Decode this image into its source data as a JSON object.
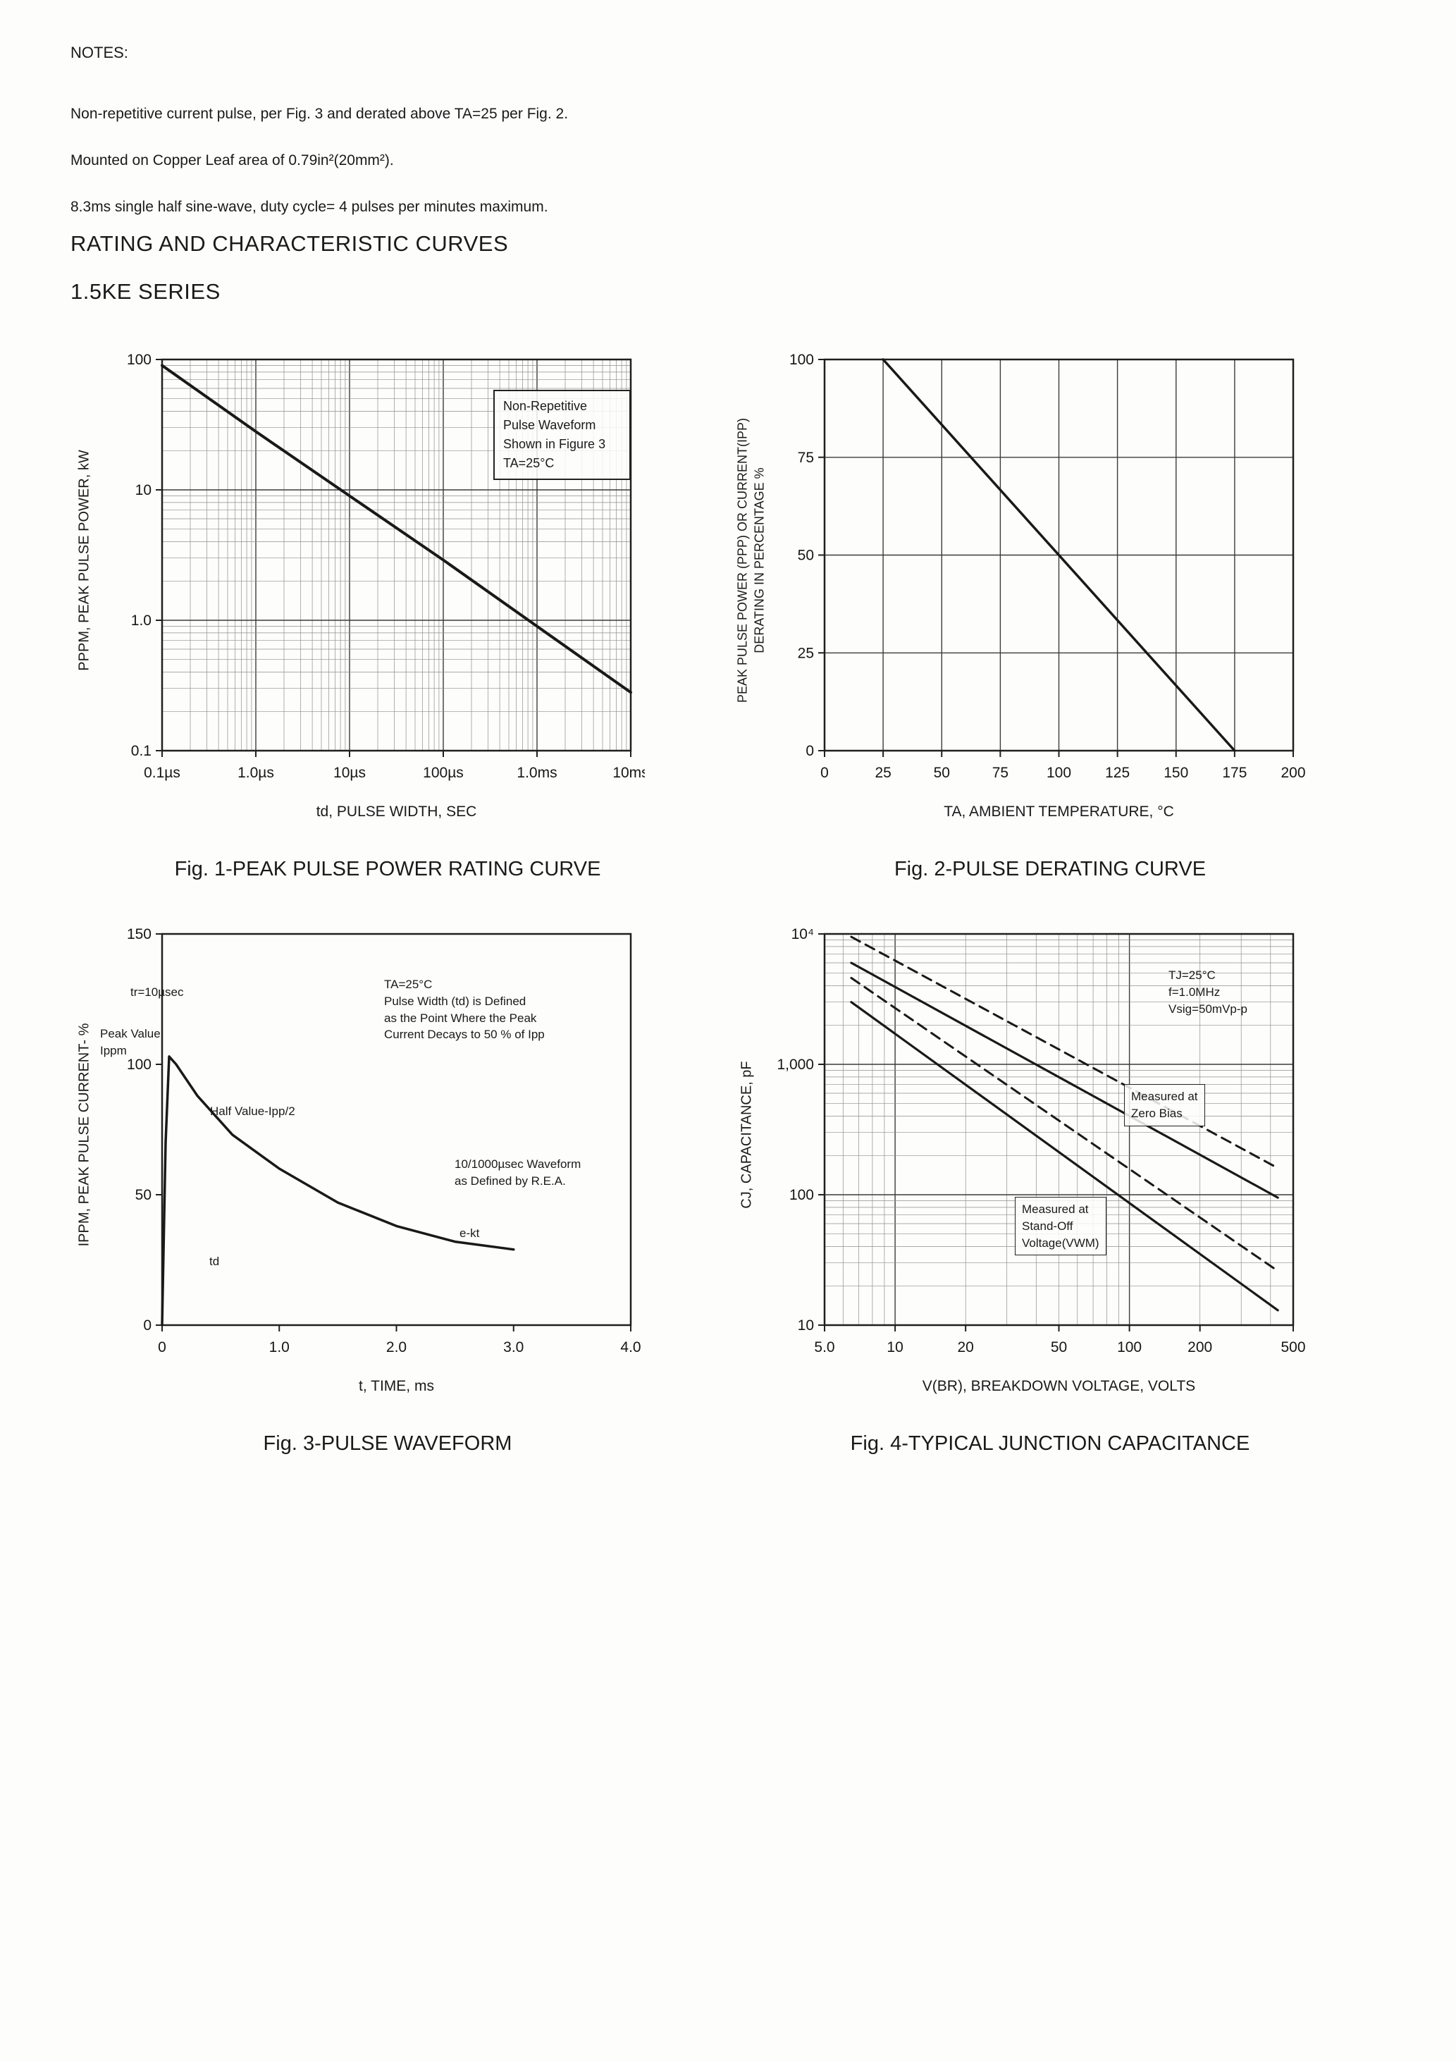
{
  "page": {
    "notes_heading": "NOTES:",
    "notes": [
      "Non-repetitive current pulse, per Fig. 3 and derated above TA=25  per Fig. 2.",
      "Mounted on Copper Leaf area of 0.79in²(20mm²).",
      "8.3ms single half sine-wave, duty cycle= 4 pulses per minutes maximum."
    ],
    "heading1": "RATING AND CHARACTERISTIC CURVES",
    "heading2": "1.5KE SERIES"
  },
  "figures": {
    "fig1": {
      "caption": "Fig. 1-PEAK PULSE POWER RATING CURVE",
      "xlabel": "td, PULSE WIDTH, SEC",
      "ylabel": "PPPM, PEAK PULSE POWER, kW",
      "legend": "Non-Repetitive\nPulse Waveform\nShown in Figure 3\nTA=25°C"
    },
    "fig2": {
      "caption": "Fig. 2-PULSE DERATING CURVE",
      "xlabel": "TA, AMBIENT TEMPERATURE, °C",
      "ylabel": "PEAK PULSE POWER (PPP) OR CURRENT(IPP)\nDERATING IN PERCENTAGE %"
    },
    "fig3": {
      "caption": "Fig. 3-PULSE WAVEFORM",
      "xlabel": "t, TIME, ms",
      "ylabel": "IPPM, PEAK PULSE CURRENT- %",
      "ann_tr": "tr=10µsec",
      "ann_peak": "Peak Value\nIppm",
      "ann_half": "Half Value-Ipp/2",
      "ann_def": "TA=25°C\nPulse Width (td) is Defined\nas the Point Where the Peak\nCurrent Decays to 50 % of Ipp",
      "ann_wave": "10/1000µsec Waveform\nas Defined by R.E.A.",
      "ann_ekt": "e-kt",
      "ann_td": "td"
    },
    "fig4": {
      "caption": "Fig. 4-TYPICAL JUNCTION CAPACITANCE",
      "xlabel": "V(BR), BREAKDOWN VOLTAGE, VOLTS",
      "ylabel": "CJ, CAPACITANCE, pF",
      "ann_cond": "TJ=25°C\nf=1.0MHz\nVsig=50mVp-p",
      "ann_zero": "Measured at\nZero Bias",
      "ann_standoff": "Measured at\nStand-Off\nVoltage(VWM)"
    }
  },
  "chart_data": [
    {
      "type": "line",
      "title": "Fig. 1-PEAK PULSE POWER RATING CURVE",
      "xlabel": "td, PULSE WIDTH, SEC",
      "ylabel": "PPPM, PEAK PULSE POWER, kW",
      "xscale": "log",
      "xmin": 1e-07,
      "xmax": 0.01,
      "yscale": "log",
      "ymin": 0.1,
      "ymax": 100,
      "grid": {
        "x": "log",
        "y": "log"
      },
      "xticks": [
        1e-07,
        1e-06,
        1e-05,
        0.0001,
        0.001,
        0.01
      ],
      "xtick_labels": [
        "0.1µs",
        "1.0µs",
        "10µs",
        "100µs",
        "1.0ms",
        "10ms"
      ],
      "yticks": [
        100,
        10,
        1,
        0.1
      ],
      "ytick_labels": [
        "100",
        "10",
        "1.0",
        "0.1"
      ],
      "series": [
        {
          "name": "peak-pulse-power-kW",
          "dash": false,
          "width": 4,
          "points": [
            [
              1e-07,
              90
            ],
            [
              1e-06,
              28
            ],
            [
              1e-05,
              9
            ],
            [
              0.0001,
              2.9
            ],
            [
              0.001,
              0.9
            ],
            [
              0.01,
              0.28
            ]
          ]
        }
      ],
      "annotation": "Non-Repetitive Pulse Waveform Shown in Figure 3, TA=25°C"
    },
    {
      "type": "line",
      "title": "Fig. 2-PULSE DERATING CURVE",
      "xlabel": "TA, AMBIENT TEMPERATURE, °C",
      "ylabel": "PEAK PULSE POWER (PPP) OR CURRENT(IPP) DERATING IN PERCENTAGE %",
      "xscale": "linear",
      "xmin": 0,
      "xmax": 200,
      "yscale": "linear",
      "ymin": 0,
      "ymax": 100,
      "grid": {
        "x": 25,
        "y": 25
      },
      "xticks": [
        0,
        25,
        50,
        75,
        100,
        125,
        150,
        175,
        200
      ],
      "xtick_labels": [
        "0",
        "25",
        "50",
        "75",
        "100",
        "125",
        "150",
        "175",
        "200"
      ],
      "yticks": [
        0,
        25,
        50,
        75,
        100
      ],
      "ytick_labels": [
        "0",
        "25",
        "50",
        "75",
        "100"
      ],
      "series": [
        {
          "name": "derating-percent",
          "dash": false,
          "width": 3.5,
          "points": [
            [
              25,
              100
            ],
            [
              175,
              0
            ]
          ]
        }
      ]
    },
    {
      "type": "line",
      "title": "Fig. 3-PULSE WAVEFORM",
      "xlabel": "t, TIME, ms",
      "ylabel": "IPPM, PEAK PULSE CURRENT- %",
      "xscale": "linear",
      "xmin": 0,
      "xmax": 4,
      "yscale": "linear",
      "ymin": 0,
      "ymax": 150,
      "grid": null,
      "xticks": [
        0,
        1,
        2,
        3,
        4
      ],
      "xtick_labels": [
        "0",
        "1.0",
        "2.0",
        "3.0",
        "4.0"
      ],
      "yticks": [
        0,
        50,
        100,
        150
      ],
      "ytick_labels": [
        "0",
        "50",
        "100",
        "150"
      ],
      "series": [
        {
          "name": "pulse-current-percent",
          "dash": false,
          "width": 3.5,
          "points": [
            [
              0,
              0
            ],
            [
              0.03,
              70
            ],
            [
              0.06,
              103
            ],
            [
              0.12,
              100
            ],
            [
              0.3,
              88
            ],
            [
              0.6,
              73
            ],
            [
              1.0,
              60
            ],
            [
              1.5,
              47
            ],
            [
              2.0,
              38
            ],
            [
              2.5,
              32
            ],
            [
              3.0,
              29
            ]
          ]
        }
      ],
      "annotations": [
        "tr=10µsec",
        "Peak Value Ippm",
        "Half Value-Ipp/2",
        "Pulse width td defined at 50% of Ipp",
        "10/1000µsec waveform as defined by R.E.A.",
        "e-kt decay"
      ]
    },
    {
      "type": "line",
      "title": "Fig. 4-TYPICAL JUNCTION CAPACITANCE",
      "xlabel": "V(BR), BREAKDOWN VOLTAGE, VOLTS",
      "ylabel": "CJ, CAPACITANCE, pF",
      "xscale": "log",
      "xmin": 5,
      "xmax": 500,
      "yscale": "log",
      "ymin": 10,
      "ymax": 10000,
      "grid": {
        "x": "log",
        "y": "log"
      },
      "xticks": [
        5,
        10,
        20,
        50,
        100,
        200,
        500
      ],
      "xtick_labels": [
        "5.0",
        "10",
        "20",
        "50",
        "100",
        "200",
        "500"
      ],
      "yticks": [
        10000,
        1000,
        100,
        10
      ],
      "ytick_labels": [
        "10⁴",
        "1,000",
        "100",
        "10"
      ],
      "series": [
        {
          "name": "measured-at-zero-bias",
          "dash": false,
          "width": 3.2,
          "points": [
            [
              6.5,
              6000
            ],
            [
              430,
              95
            ]
          ]
        },
        {
          "name": "measured-at-zero-bias-dashed",
          "dash": true,
          "width": 3,
          "points": [
            [
              6.5,
              9500
            ],
            [
              430,
              160
            ]
          ]
        },
        {
          "name": "measured-at-stand-off-voltage",
          "dash": false,
          "width": 3.2,
          "points": [
            [
              6.5,
              3000
            ],
            [
              430,
              13
            ]
          ]
        },
        {
          "name": "measured-at-stand-off-voltage-dashed",
          "dash": true,
          "width": 3,
          "points": [
            [
              6.5,
              4600
            ],
            [
              430,
              26
            ]
          ]
        }
      ],
      "conditions": "TJ=25°C, f=1.0MHz, Vsig=50mVp-p"
    }
  ]
}
